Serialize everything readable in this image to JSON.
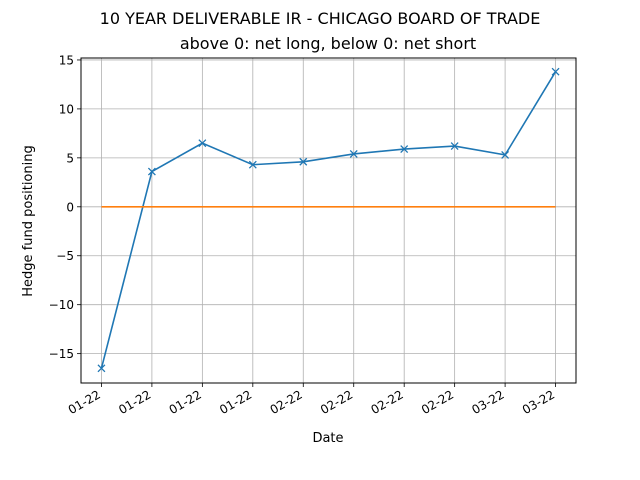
{
  "chart_data": {
    "type": "line",
    "title": "10 YEAR DELIVERABLE IR - CHICAGO BOARD OF TRADE",
    "subtitle": "above 0: net long, below 0: net short",
    "xlabel": "Date",
    "ylabel": "Hedge fund positioning",
    "x_tick_labels": [
      "01-22",
      "01-22",
      "01-22",
      "01-22",
      "02-22",
      "02-22",
      "02-22",
      "02-22",
      "03-22",
      "03-22"
    ],
    "x": [
      "2022-01-04",
      "2022-01-11",
      "2022-01-18",
      "2022-01-25",
      "2022-02-01",
      "2022-02-08",
      "2022-02-15",
      "2022-02-22",
      "2022-03-01",
      "2022-03-08"
    ],
    "ylim": [
      -18,
      15.2
    ],
    "y_ticks": [
      -15,
      -10,
      -5,
      0,
      5,
      10,
      15
    ],
    "y_tick_labels": [
      "−15",
      "−10",
      "−5",
      "0",
      "5",
      "10",
      "15"
    ],
    "grid": true,
    "series": [
      {
        "values": [
          -16.5,
          3.6,
          6.5,
          4.3,
          4.6,
          5.4,
          5.9,
          6.2,
          5.3,
          13.8
        ],
        "color": "#1f77b4",
        "marker": "x"
      },
      {
        "values": [
          0,
          0,
          0,
          0,
          0,
          0,
          0,
          0,
          0,
          0
        ],
        "color": "#ff7f0e",
        "marker": "none"
      }
    ]
  }
}
